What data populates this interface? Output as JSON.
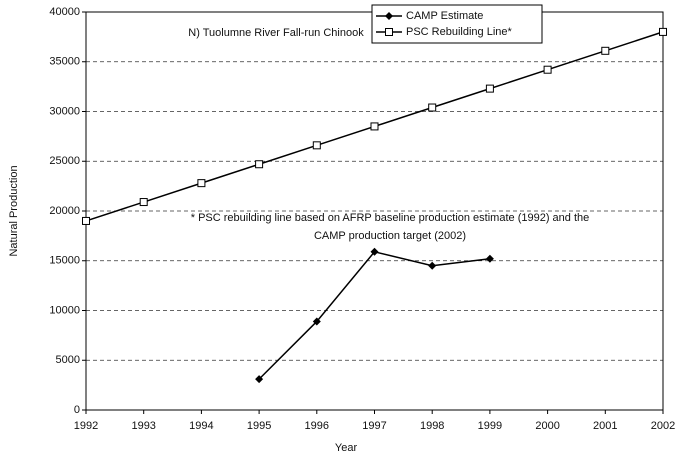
{
  "chart_data": {
    "type": "line",
    "title": "N) Tuolumne River Fall-run Chinook",
    "annotation": [
      "* PSC rebuilding line based on AFRP baseline production estimate (1992) and the",
      "CAMP production target (2002)"
    ],
    "x_label": "Year",
    "y_label": "Natural Production",
    "x": [
      1992,
      1993,
      1994,
      1995,
      1996,
      1997,
      1998,
      1999,
      2000,
      2001,
      2002
    ],
    "series": [
      {
        "name": "CAMP Estimate",
        "color": "#000000",
        "marker": "diamond",
        "values": [
          null,
          null,
          null,
          3100,
          8900,
          15900,
          14500,
          15200,
          null,
          null,
          null
        ]
      },
      {
        "name": "PSC Rebuilding Line*",
        "color": "#000000",
        "marker": "square",
        "values": [
          19000,
          20900,
          22800,
          24700,
          26600,
          28500,
          30400,
          32300,
          34200,
          36100,
          38000
        ]
      }
    ],
    "xlim": [
      1992,
      2002
    ],
    "xticks": [
      1992,
      1993,
      1994,
      1995,
      1996,
      1997,
      1998,
      1999,
      2000,
      2001,
      2002
    ],
    "ylim": [
      0,
      40000
    ],
    "yticks": [
      0,
      5000,
      10000,
      15000,
      20000,
      25000,
      30000,
      35000,
      40000
    ],
    "grid": true,
    "legend": "top-right"
  }
}
